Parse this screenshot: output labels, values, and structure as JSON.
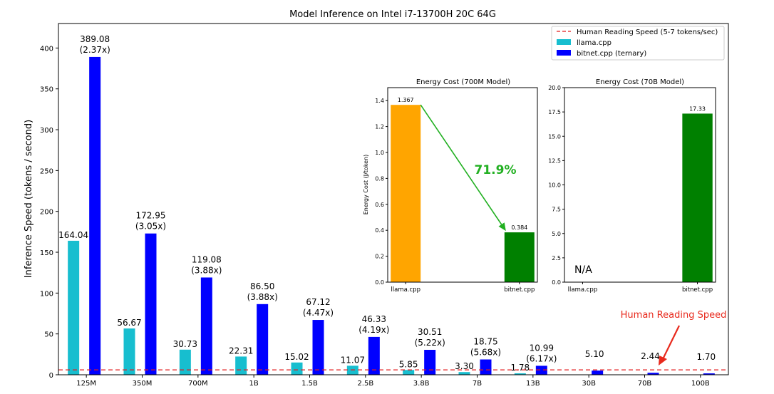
{
  "colors": {
    "llama": "#17becf",
    "bitnet": "#0000ff",
    "orange": "#ffa500",
    "green": "#008000",
    "human_line": "#e31a1c",
    "arrow": "#22b022",
    "annotation_red": "#e8291c"
  },
  "chart_data": [
    {
      "type": "bar",
      "title": "Model Inference on Intel i7-13700H 20C 64G",
      "xlabel": "",
      "ylabel": "Inference Speed (tokens / second)",
      "ylim": [
        0,
        430
      ],
      "yticks": [
        "0",
        "50",
        "100",
        "150",
        "200",
        "250",
        "300",
        "350",
        "400"
      ],
      "categories": [
        "125M",
        "350M",
        "700M",
        "1B",
        "1.5B",
        "2.5B",
        "3.8B",
        "7B",
        "13B",
        "30B",
        "70B",
        "100B"
      ],
      "series": [
        {
          "name": "llama.cpp",
          "values": [
            164.04,
            56.67,
            30.73,
            22.31,
            15.02,
            11.07,
            5.85,
            3.3,
            1.78,
            null,
            null,
            null
          ]
        },
        {
          "name": "bitnet.cpp (ternary)",
          "values": [
            389.08,
            172.95,
            119.08,
            86.5,
            67.12,
            46.33,
            30.51,
            18.75,
            10.99,
            5.1,
            2.44,
            1.7
          ]
        }
      ],
      "llama_labels": [
        "164.04",
        "56.67",
        "30.73",
        "22.31",
        "15.02",
        "11.07",
        "5.85",
        "3.30",
        "1.78",
        "",
        "",
        ""
      ],
      "bitnet_labels": [
        "389.08",
        "172.95",
        "119.08",
        "86.50",
        "67.12",
        "46.33",
        "30.51",
        "18.75",
        "10.99",
        "5.10",
        "2.44",
        "1.70"
      ],
      "speedups": [
        "(2.37x)",
        "(3.05x)",
        "(3.88x)",
        "(3.88x)",
        "(4.47x)",
        "(4.19x)",
        "(5.22x)",
        "(5.68x)",
        "(6.17x)",
        "",
        "",
        ""
      ],
      "reference_line": {
        "name": "Human Reading Speed (5-7 tokens/sec)",
        "value": 6,
        "style": "dashed"
      },
      "legend": {
        "placement": "top-right",
        "entries": [
          "Human Reading Speed (5-7 tokens/sec)",
          "llama.cpp",
          "bitnet.cpp (ternary)"
        ]
      },
      "annotation": "Human Reading Speed"
    },
    {
      "type": "bar",
      "title": "Energy Cost (700M Model)",
      "ylabel": "Energy Cost (J/token)",
      "ylim": [
        0,
        1.5
      ],
      "yticks": [
        "0.0",
        "0.2",
        "0.4",
        "0.6",
        "0.8",
        "1.0",
        "1.2",
        "1.4"
      ],
      "categories": [
        "llama.cpp",
        "bitnet.cpp"
      ],
      "values": [
        1.367,
        0.384
      ],
      "value_labels": [
        "1.367",
        "0.384"
      ],
      "reduction_label": "71.9%"
    },
    {
      "type": "bar",
      "title": "Energy Cost (70B Model)",
      "ylabel": "",
      "ylim": [
        0,
        20
      ],
      "yticks": [
        "0.0",
        "2.5",
        "5.0",
        "7.5",
        "10.0",
        "12.5",
        "15.0",
        "17.5",
        "20.0"
      ],
      "categories": [
        "llama.cpp",
        "bitnet.cpp"
      ],
      "values": [
        null,
        17.33
      ],
      "value_labels": [
        "",
        "17.33"
      ],
      "missing_label": "N/A"
    }
  ]
}
